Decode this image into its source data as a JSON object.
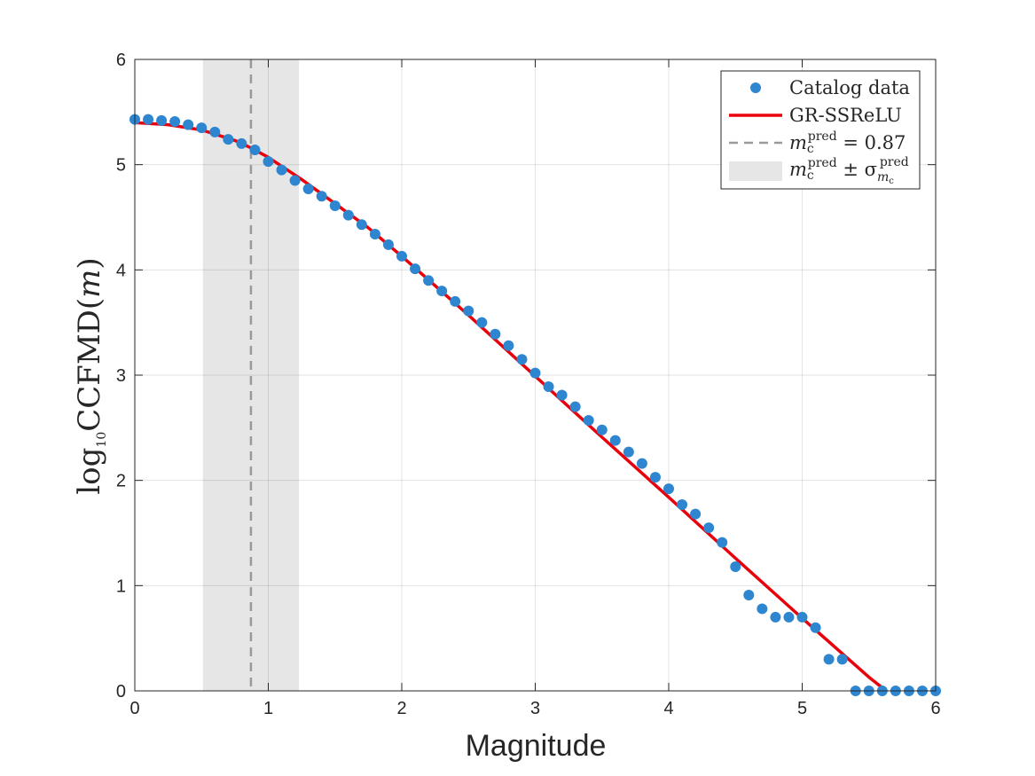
{
  "chart_data": {
    "type": "scatter",
    "xlabel": "Magnitude",
    "ylabel": "log₁₀CCFMD(m)",
    "xlim": [
      0,
      6
    ],
    "ylim": [
      0,
      6
    ],
    "xticks": [
      0,
      1,
      2,
      3,
      4,
      5,
      6
    ],
    "yticks": [
      0,
      1,
      2,
      3,
      4,
      5,
      6
    ],
    "grid": true,
    "legend_position": "top-right",
    "colors": {
      "points": "#2f86d0",
      "fit": "#e8000b",
      "mc_line": "#9a9a9a",
      "band": "#e6e6e6"
    },
    "series": [
      {
        "name": "Catalog data",
        "kind": "scatter",
        "x": [
          0.0,
          0.1,
          0.2,
          0.3,
          0.4,
          0.5,
          0.6,
          0.7,
          0.8,
          0.9,
          1.0,
          1.1,
          1.2,
          1.3,
          1.4,
          1.5,
          1.6,
          1.7,
          1.8,
          1.9,
          2.0,
          2.1,
          2.2,
          2.3,
          2.4,
          2.5,
          2.6,
          2.7,
          2.8,
          2.9,
          3.0,
          3.1,
          3.2,
          3.3,
          3.4,
          3.5,
          3.6,
          3.7,
          3.8,
          3.9,
          4.0,
          4.1,
          4.2,
          4.3,
          4.4,
          4.5,
          4.6,
          4.7,
          4.8,
          4.9,
          5.0,
          5.1,
          5.2,
          5.3,
          5.4,
          5.5,
          5.6,
          5.7,
          5.8,
          5.9,
          6.0
        ],
        "y": [
          5.43,
          5.43,
          5.42,
          5.41,
          5.38,
          5.35,
          5.31,
          5.24,
          5.2,
          5.14,
          5.03,
          4.95,
          4.85,
          4.77,
          4.7,
          4.61,
          4.52,
          4.43,
          4.34,
          4.24,
          4.13,
          4.01,
          3.9,
          3.8,
          3.7,
          3.61,
          3.5,
          3.39,
          3.28,
          3.15,
          3.02,
          2.89,
          2.81,
          2.7,
          2.57,
          2.48,
          2.38,
          2.27,
          2.16,
          2.03,
          1.92,
          1.77,
          1.68,
          1.55,
          1.41,
          1.18,
          0.91,
          0.78,
          0.7,
          0.7,
          0.7,
          0.6,
          0.3,
          0.3,
          0,
          0,
          0,
          0,
          0,
          0,
          0
        ]
      },
      {
        "name": "GR-SSReLU",
        "kind": "line",
        "x": [
          0,
          0.25,
          0.5,
          0.75,
          0.87,
          1.0,
          1.25,
          1.5,
          1.75,
          2.0,
          2.5,
          3.0,
          3.5,
          4.0,
          4.5,
          5.0,
          5.5,
          5.63
        ],
        "y": [
          5.4,
          5.38,
          5.33,
          5.23,
          5.16,
          5.07,
          4.86,
          4.63,
          4.4,
          4.13,
          3.57,
          2.99,
          2.41,
          1.84,
          1.26,
          0.69,
          0.13,
          0.0
        ]
      }
    ],
    "mc_pred": 0.87,
    "mc_band": [
      0.51,
      1.23
    ],
    "legend": {
      "scatter_label": "Catalog data",
      "fit_label": "GR-SSReLU",
      "mc_label_prefix": "m",
      "mc_label_sub": "c",
      "mc_label_sup": "pred",
      "mc_label_value": " = 0.87",
      "band_label_pm": " ± σ",
      "band_label_sub2": "m",
      "band_label_sub3": "c"
    }
  }
}
